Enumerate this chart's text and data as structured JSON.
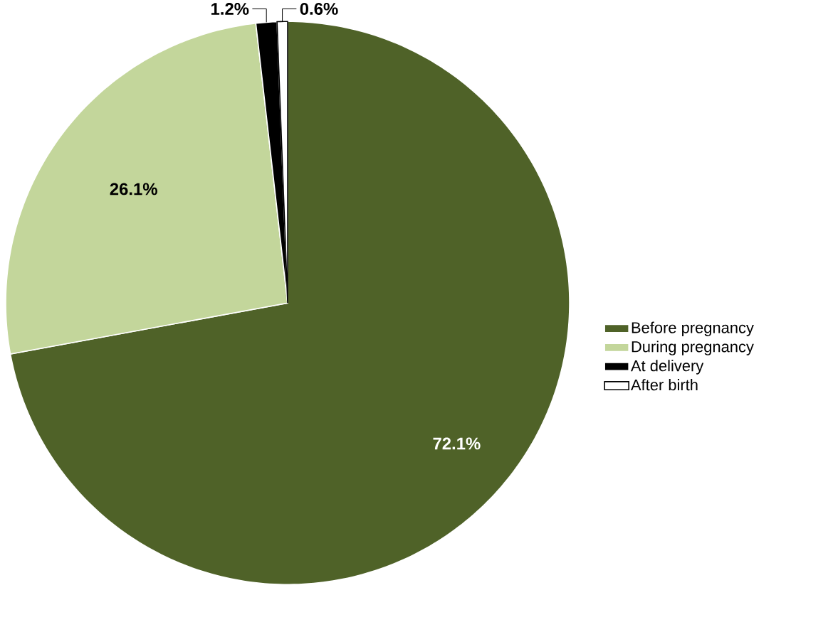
{
  "chart_data": {
    "type": "pie",
    "categories": [
      "Before pregnancy",
      "During pregnancy",
      "At delivery",
      "After birth"
    ],
    "values": [
      72.1,
      26.1,
      1.2,
      0.6
    ],
    "colors": [
      "#4f6228",
      "#c3d69b",
      "#000000",
      "#ffffff"
    ],
    "value_labels": [
      "72.1%",
      "26.1%",
      "1.2%",
      "0.6%"
    ],
    "legend": "right"
  }
}
